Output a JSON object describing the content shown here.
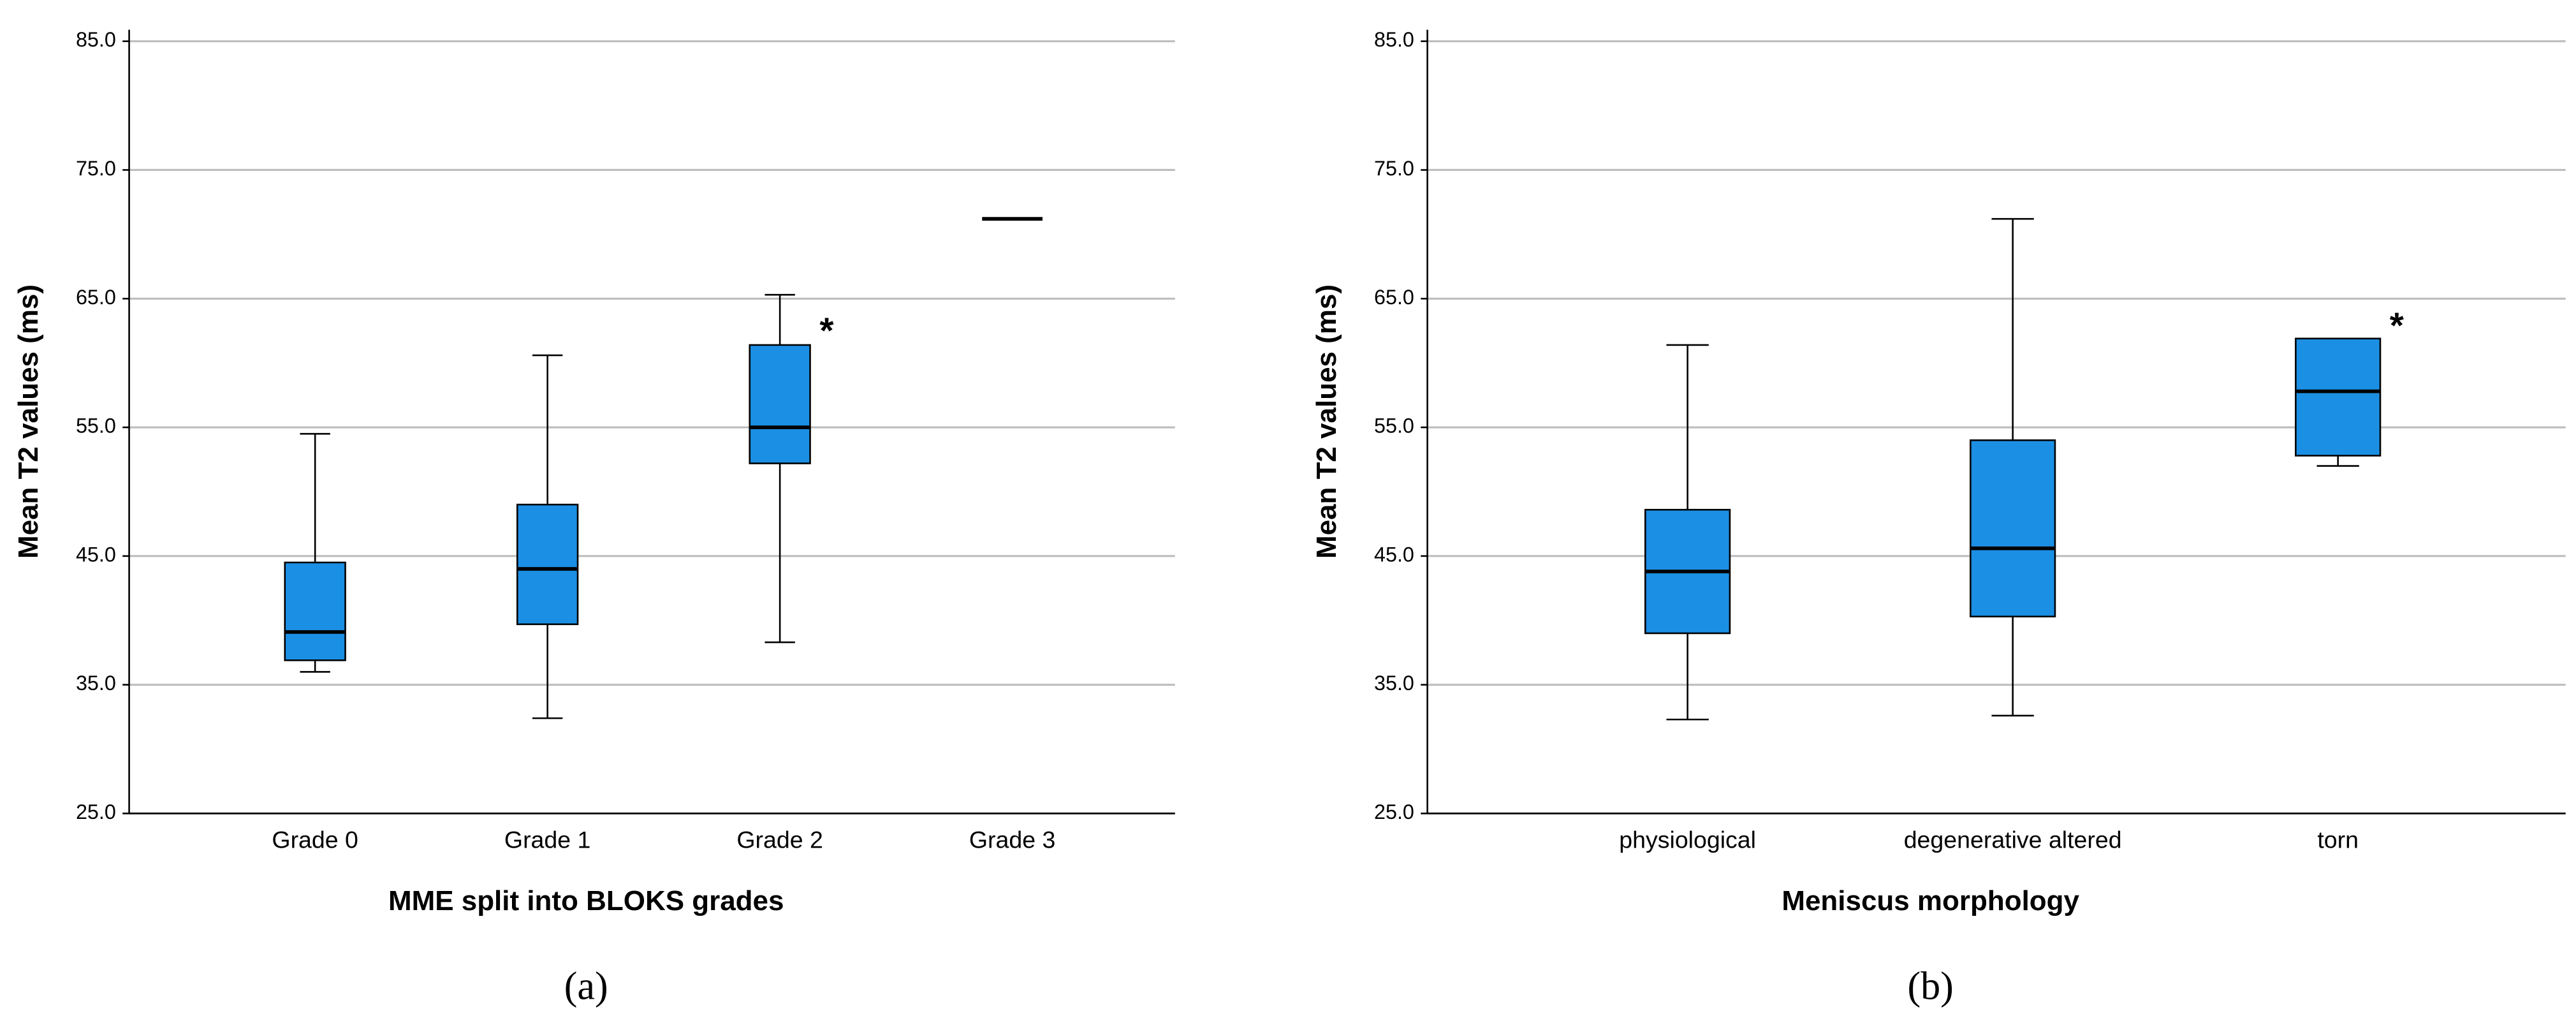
{
  "chart_data": [
    {
      "type": "box",
      "x_label": "MME split into BLOKS grades",
      "y_label": "Mean T2 values (ms)",
      "panel_label": "(a)",
      "categories": [
        "Grade 0",
        "Grade 1",
        "Grade 2",
        "Grade 3"
      ],
      "series": [
        {
          "color": "#1b8fe3",
          "min": [
            36.0,
            32.4,
            38.3,
            71.2
          ],
          "q1": [
            36.9,
            39.7,
            52.2,
            71.2
          ],
          "median": [
            39.1,
            44.0,
            55.0,
            71.2
          ],
          "q3": [
            44.5,
            49.0,
            61.4,
            71.2
          ],
          "max": [
            54.5,
            60.6,
            65.3,
            71.2
          ],
          "outliers": [
            null,
            null,
            62.7,
            null
          ],
          "outlier_label": "*"
        }
      ],
      "ylim": [
        25,
        85
      ],
      "yticks": [
        {
          "value": 25,
          "label": "25.0"
        },
        {
          "value": 35,
          "label": "35.0"
        },
        {
          "value": 45,
          "label": "45.0"
        },
        {
          "value": 55,
          "label": "55.0"
        },
        {
          "value": 65,
          "label": "65.0"
        },
        {
          "value": 75,
          "label": "75.0"
        },
        {
          "value": 85,
          "label": "85.0"
        }
      ],
      "grid": true
    },
    {
      "type": "box",
      "x_label": "Meniscus morphology",
      "y_label": "Mean T2 values (ms)",
      "panel_label": "(b)",
      "categories": [
        "physiological",
        "degenerative altered",
        "torn"
      ],
      "series": [
        {
          "color": "#1b8fe3",
          "min": [
            32.3,
            32.6,
            52.0
          ],
          "q1": [
            39.0,
            40.3,
            52.8
          ],
          "median": [
            43.8,
            45.6,
            57.8
          ],
          "q3": [
            48.6,
            54.0,
            61.9
          ],
          "max": [
            61.4,
            71.2,
            61.9
          ],
          "outliers": [
            null,
            null,
            63.1
          ],
          "outlier_label": "*"
        }
      ],
      "ylim": [
        25,
        85
      ],
      "yticks": [
        {
          "value": 25,
          "label": "25.0"
        },
        {
          "value": 35,
          "label": "35.0"
        },
        {
          "value": 45,
          "label": "45.0"
        },
        {
          "value": 55,
          "label": "55.0"
        },
        {
          "value": 65,
          "label": "65.0"
        },
        {
          "value": 75,
          "label": "75.0"
        },
        {
          "value": 85,
          "label": "85.0"
        }
      ],
      "grid": true
    }
  ]
}
